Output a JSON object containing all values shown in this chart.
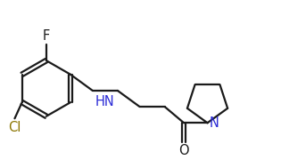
{
  "bg_color": "#ffffff",
  "line_color": "#1a1a1a",
  "N_color": "#2b2bd6",
  "Cl_color": "#8b7500",
  "F_label": "F",
  "Cl_label": "Cl",
  "N_label": "N",
  "HN_label": "HN",
  "O_label": "O",
  "line_width": 1.6,
  "font_size": 10.5
}
